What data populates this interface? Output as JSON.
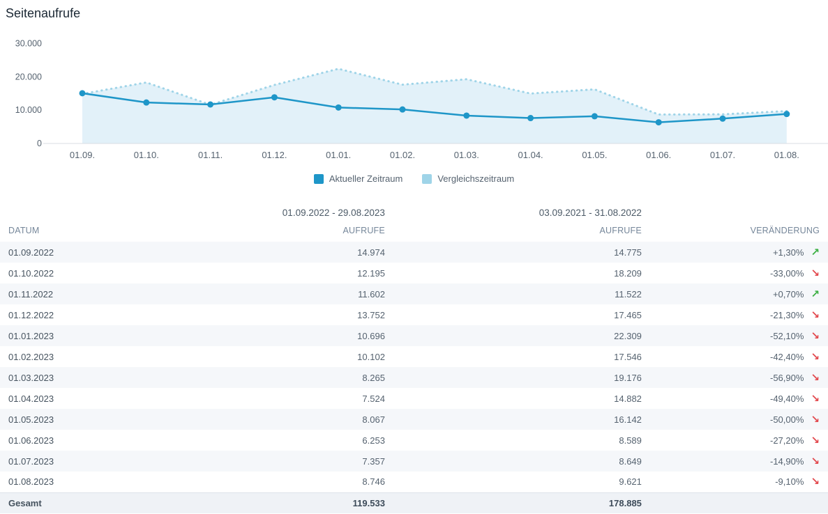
{
  "title": "Seitenaufrufe",
  "colors": {
    "current": "#1e96c8",
    "comparison": "#9fd4e8",
    "area": "#e2f1f9",
    "axis": "#d8dde3",
    "chart_text": "#55626f",
    "positive": "#3cb043",
    "negative": "#e2484d"
  },
  "icons": {
    "trend_up": "↗",
    "trend_down": "↘"
  },
  "chart_data": {
    "type": "line",
    "title": "Seitenaufrufe",
    "x_labels": [
      "01.09.",
      "01.10.",
      "01.11.",
      "01.12.",
      "01.01.",
      "01.02.",
      "01.03.",
      "01.04.",
      "01.05.",
      "01.06.",
      "01.07.",
      "01.08."
    ],
    "ylim": [
      0,
      30000
    ],
    "y_ticks": [
      {
        "value": 0,
        "label": "0"
      },
      {
        "value": 10000,
        "label": "10.000"
      },
      {
        "value": 20000,
        "label": "20.000"
      },
      {
        "value": 30000,
        "label": "30.000"
      }
    ],
    "grid": false,
    "legend_position": "bottom",
    "series": [
      {
        "name": "Aktueller Zeitraum",
        "style": "solid",
        "markers": true,
        "values": [
          14974,
          12195,
          11602,
          13752,
          10696,
          10102,
          8265,
          7524,
          8067,
          6253,
          7357,
          8746
        ]
      },
      {
        "name": "Vergleichszeitraum",
        "style": "dotted",
        "area": true,
        "values": [
          14775,
          18209,
          11522,
          17465,
          22309,
          17546,
          19176,
          14882,
          16142,
          8589,
          8649,
          9621
        ]
      }
    ]
  },
  "table": {
    "period_headers": [
      "01.09.2022 - 29.08.2023",
      "03.09.2021 - 31.08.2022"
    ],
    "columns": [
      "DATUM",
      "AUFRUFE",
      "AUFRUFE",
      "VERÄNDERUNG"
    ],
    "rows": [
      {
        "date": "01.09.2022",
        "current": "14.974",
        "comparison": "14.775",
        "change": "+1,30%",
        "trend": "up"
      },
      {
        "date": "01.10.2022",
        "current": "12.195",
        "comparison": "18.209",
        "change": "-33,00%",
        "trend": "down"
      },
      {
        "date": "01.11.2022",
        "current": "11.602",
        "comparison": "11.522",
        "change": "+0,70%",
        "trend": "up"
      },
      {
        "date": "01.12.2022",
        "current": "13.752",
        "comparison": "17.465",
        "change": "-21,30%",
        "trend": "down"
      },
      {
        "date": "01.01.2023",
        "current": "10.696",
        "comparison": "22.309",
        "change": "-52,10%",
        "trend": "down"
      },
      {
        "date": "01.02.2023",
        "current": "10.102",
        "comparison": "17.546",
        "change": "-42,40%",
        "trend": "down"
      },
      {
        "date": "01.03.2023",
        "current": "8.265",
        "comparison": "19.176",
        "change": "-56,90%",
        "trend": "down"
      },
      {
        "date": "01.04.2023",
        "current": "7.524",
        "comparison": "14.882",
        "change": "-49,40%",
        "trend": "down"
      },
      {
        "date": "01.05.2023",
        "current": "8.067",
        "comparison": "16.142",
        "change": "-50,00%",
        "trend": "down"
      },
      {
        "date": "01.06.2023",
        "current": "6.253",
        "comparison": "8.589",
        "change": "-27,20%",
        "trend": "down"
      },
      {
        "date": "01.07.2023",
        "current": "7.357",
        "comparison": "8.649",
        "change": "-14,90%",
        "trend": "down"
      },
      {
        "date": "01.08.2023",
        "current": "8.746",
        "comparison": "9.621",
        "change": "-9,10%",
        "trend": "down"
      }
    ],
    "total": {
      "label": "Gesamt",
      "current": "119.533",
      "comparison": "178.885"
    }
  }
}
